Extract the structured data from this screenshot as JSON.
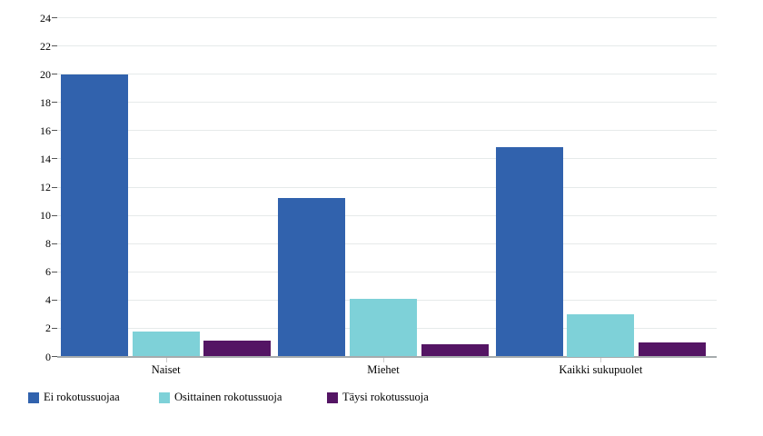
{
  "chart": {
    "background": "#ffffff",
    "text_color": "#000000",
    "gridline_color": "#e6eaea",
    "axis_line_color": "#a6abad"
  },
  "chart_data": {
    "type": "bar",
    "title": "",
    "categories": [
      "Naiset",
      "Miehet",
      "Kaikki sukupuolet"
    ],
    "series": [
      {
        "name": "Ei rokotussuojaa",
        "color": "#3162ad",
        "values": [
          20,
          11.2,
          14.8
        ]
      },
      {
        "name": "Osittainen rokotussuoja",
        "color": "#7ed1d8",
        "values": [
          1.8,
          4.1,
          3
        ]
      },
      {
        "name": "Täysi rokotussuoja",
        "color": "#541564",
        "values": [
          1.1,
          0.9,
          1
        ]
      }
    ],
    "xlabel": "",
    "ylabel": "",
    "ylim": [
      0,
      24
    ],
    "yticks": [
      0,
      2,
      4,
      6,
      8,
      10,
      12,
      14,
      16,
      18,
      20,
      22,
      24
    ],
    "grid": true,
    "legend_position": "bottom-left"
  }
}
